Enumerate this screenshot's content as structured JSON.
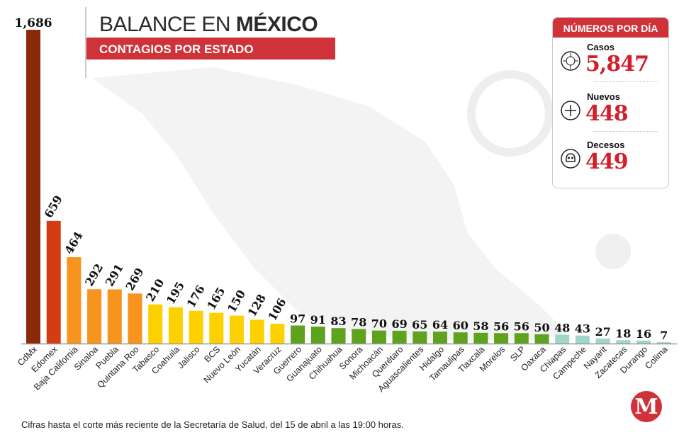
{
  "header": {
    "title_regular": "BALANCE EN ",
    "title_bold": "MÉXICO",
    "subtitle": "CONTAGIOS POR ESTADO"
  },
  "stats_box": {
    "title": "NÚMEROS POR DÍA",
    "items": [
      {
        "label": "Casos",
        "value": "5,847",
        "icon": "virus-icon"
      },
      {
        "label": "Nuevos",
        "value": "448",
        "icon": "plus-icon"
      },
      {
        "label": "Decesos",
        "value": "449",
        "icon": "skull-icon"
      }
    ]
  },
  "footer": {
    "note": "Cifras hasta el corte más reciente de la Secretaría de Salud, del 15 de abril a las 19:00 horas."
  },
  "logo": {
    "text": "M"
  },
  "colors": {
    "dark_red": "#8b2a0a",
    "red": "#d63c13",
    "orange": "#f7941d",
    "yellow": "#fdd000",
    "green": "#5ea21d",
    "teal": "#9fd6c9",
    "accent": "#d0323a"
  },
  "chart_data": {
    "type": "bar",
    "title": "BALANCE EN MÉXICO",
    "subtitle": "CONTAGIOS POR ESTADO",
    "xlabel": "",
    "ylabel": "",
    "ylim": [
      0,
      1686
    ],
    "grid": false,
    "categories": [
      "CdMx",
      "Edomex",
      "Baja California",
      "Sinaloa",
      "Puebla",
      "Quintana Roo",
      "Tabasco",
      "Coahuila",
      "Jalisco",
      "BCS",
      "Nuevo León",
      "Yucatán",
      "Veracruz",
      "Guerrero",
      "Guanajuato",
      "Chihuahua",
      "Sonora",
      "Michoacán",
      "Querétaro",
      "Aguascalientes",
      "Hidalgo",
      "Tamaulipas",
      "Tlaxcala",
      "Morelos",
      "SLP",
      "Oaxaca",
      "Chiapas",
      "Campeche",
      "Nayarit",
      "Zacatecas",
      "Durango",
      "Colima"
    ],
    "values": [
      1686,
      659,
      464,
      292,
      291,
      269,
      210,
      195,
      176,
      165,
      150,
      128,
      106,
      97,
      91,
      83,
      78,
      70,
      69,
      65,
      64,
      60,
      58,
      56,
      56,
      50,
      48,
      43,
      27,
      18,
      16,
      7
    ],
    "value_labels": [
      "1,686",
      "659",
      "464",
      "292",
      "291",
      "269",
      "210",
      "195",
      "176",
      "165",
      "150",
      "128",
      "106",
      "97",
      "91",
      "83",
      "78",
      "70",
      "69",
      "65",
      "64",
      "60",
      "58",
      "56",
      "56",
      "50",
      "48",
      "43",
      "27",
      "18",
      "16",
      "7"
    ],
    "color_groups": [
      "dark_red",
      "red",
      "orange",
      "orange",
      "orange",
      "orange",
      "yellow",
      "yellow",
      "yellow",
      "yellow",
      "yellow",
      "yellow",
      "yellow",
      "green",
      "green",
      "green",
      "green",
      "green",
      "green",
      "green",
      "green",
      "green",
      "green",
      "green",
      "green",
      "green",
      "teal",
      "teal",
      "teal",
      "teal",
      "teal",
      "teal"
    ]
  }
}
